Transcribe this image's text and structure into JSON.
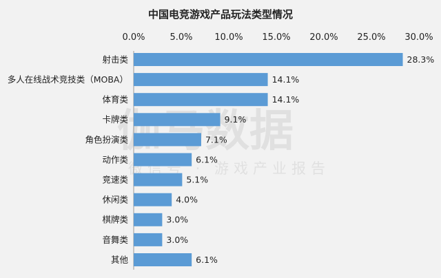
{
  "chart_data": {
    "type": "bar",
    "orientation": "horizontal",
    "title": "中国电竞游戏产品玩法类型情况",
    "xlabel": "",
    "ylabel": "",
    "xlim": [
      0,
      30
    ],
    "ticks": [
      "0.0%",
      "5.0%",
      "10.0%",
      "15.0%",
      "20.0%",
      "25.0%",
      "30.0%"
    ],
    "tick_axis_position": "top",
    "grid": false,
    "legend": "none",
    "bar_color": "#5b9bd5",
    "categories": [
      "射击类",
      "多人在线战术竞技类（MOBA）",
      "体育类",
      "卡牌类",
      "角色扮演类",
      "动作类",
      "竞速类",
      "休闲类",
      "棋牌类",
      "音舞类",
      "其他"
    ],
    "values": [
      28.3,
      14.1,
      14.1,
      9.1,
      7.1,
      6.1,
      5.1,
      4.0,
      3.0,
      3.0,
      6.1
    ],
    "value_labels": [
      "28.3%",
      "14.1%",
      "14.1%",
      "9.1%",
      "7.1%",
      "6.1%",
      "5.1%",
      "4.0%",
      "3.0%",
      "3.0%",
      "6.1%"
    ]
  },
  "watermark": {
    "main": "伽马数据",
    "sub": "微信号 · 游戏产业报告"
  }
}
